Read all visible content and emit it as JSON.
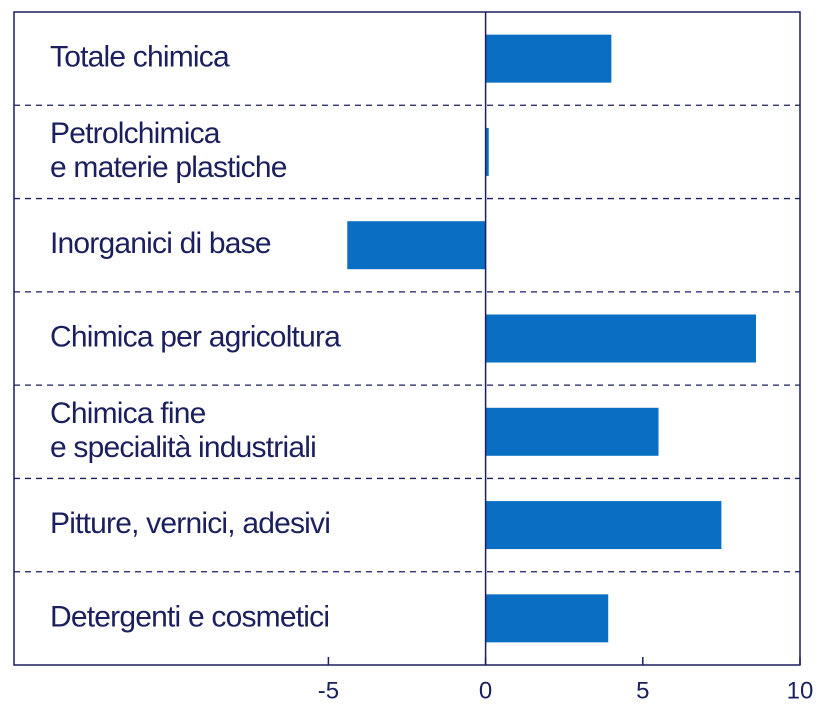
{
  "chart_data": {
    "type": "bar",
    "orientation": "horizontal",
    "categories": [
      "Totale chimica",
      "Petrolchimica\ne materie plastiche",
      "Inorganici di base",
      "Chimica per agricoltura",
      "Chimica fine\ne specialità industriali",
      "Pitture, vernici, adesivi",
      "Detergenti e cosmetici"
    ],
    "values": [
      4.0,
      0.1,
      -4.4,
      8.6,
      5.5,
      7.5,
      3.9
    ],
    "color": "#0a6fc2",
    "xlim": [
      -15,
      10
    ],
    "xticks": [
      -5,
      0,
      5,
      10
    ],
    "grid": true
  }
}
